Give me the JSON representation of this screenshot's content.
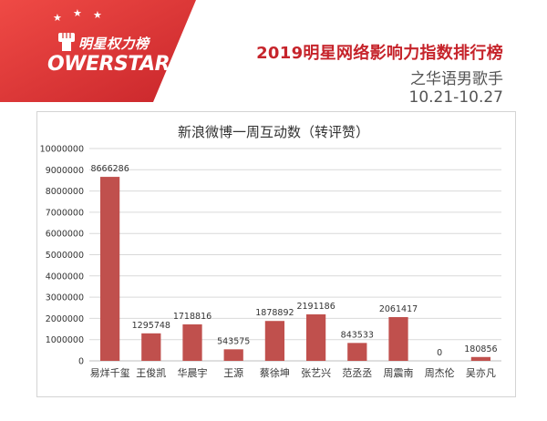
{
  "header": {
    "brand_cn": "明星权力榜",
    "brand_en": "OWERSTAR",
    "title": "2019明星网络影响力指数排行榜",
    "subtitle": "之华语男歌手",
    "date_range": "10.21-10.27",
    "accent_color": "#c6242b",
    "logo_bg_color": "#e33b3b"
  },
  "chart_data": {
    "type": "bar",
    "title": "新浪微博一周互动数（转评赞）",
    "categories": [
      "易烊千玺",
      "王俊凯",
      "华晨宇",
      "王源",
      "蔡徐坤",
      "张艺兴",
      "范丞丞",
      "周震南",
      "周杰伦",
      "吴亦凡"
    ],
    "values": [
      8666286,
      1295748,
      1718816,
      543575,
      1878892,
      2191186,
      843533,
      2061417,
      0,
      180856
    ],
    "data_labels": [
      "8666286",
      "1295748",
      "1718816",
      "543575",
      "1878892",
      "2191186",
      "843533",
      "2061417",
      "0",
      "180856"
    ],
    "yticks": [
      0,
      1000000,
      2000000,
      3000000,
      4000000,
      5000000,
      6000000,
      7000000,
      8000000,
      9000000,
      10000000
    ],
    "ylim": [
      0,
      10000000
    ],
    "grid": true,
    "bar_color": "#c0504d",
    "grid_color": "#d9d9d9"
  }
}
